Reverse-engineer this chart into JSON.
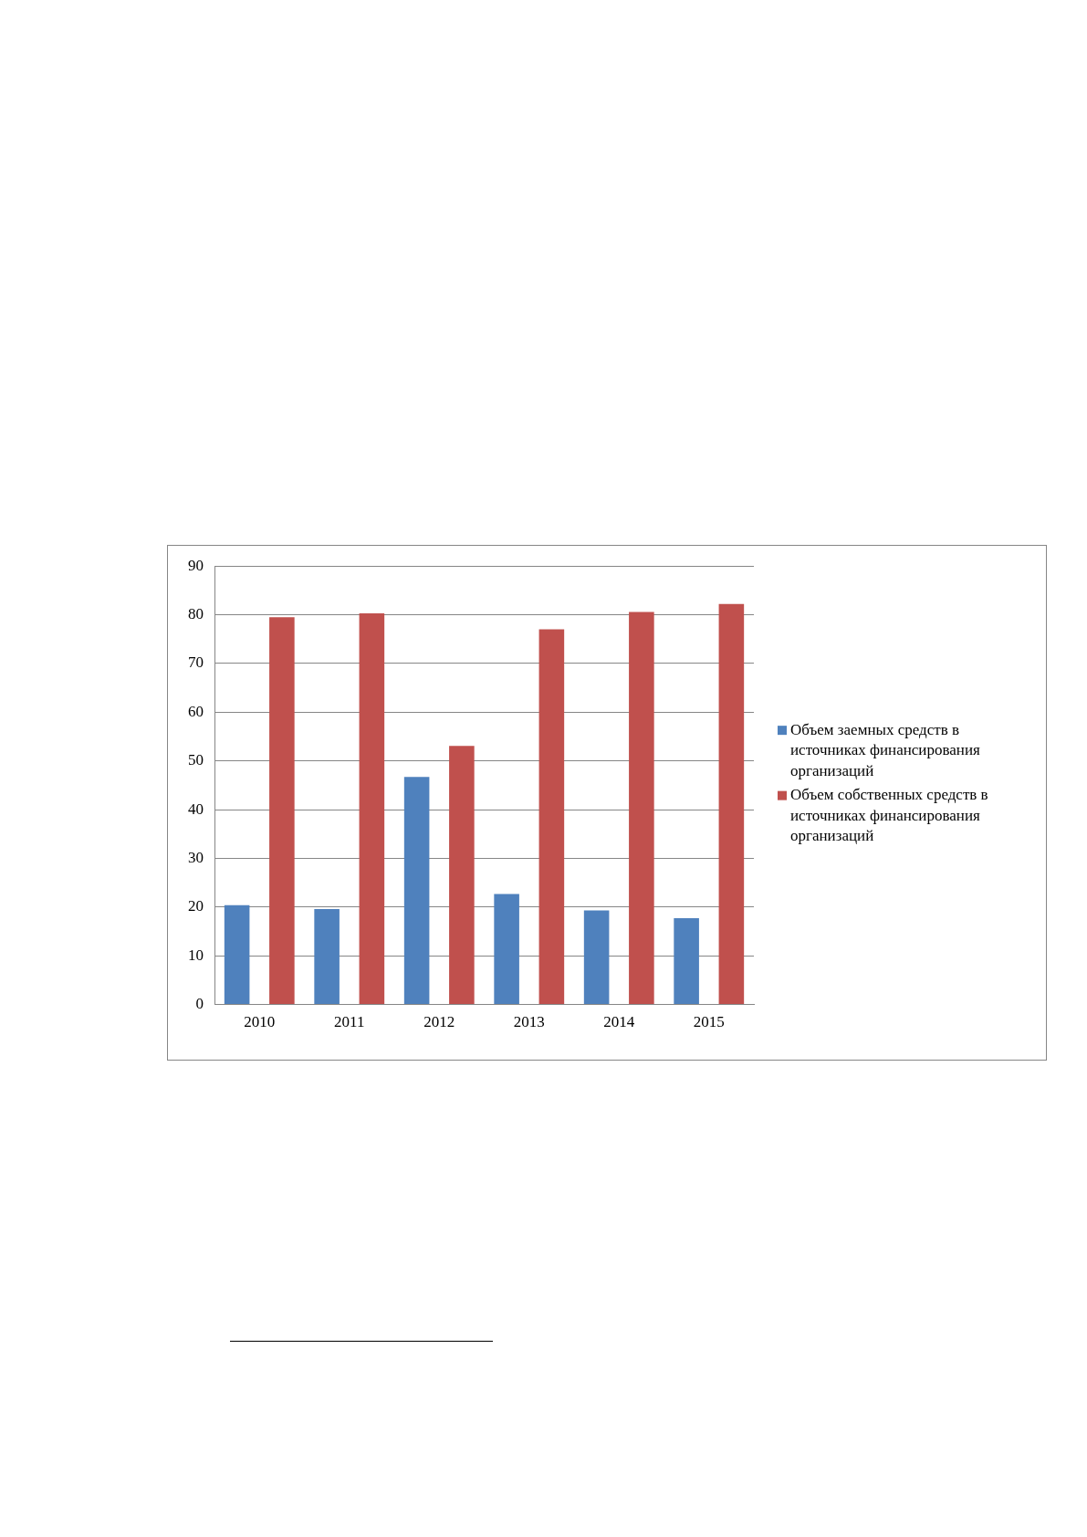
{
  "chart_data": {
    "type": "bar",
    "categories": [
      "2010",
      "2011",
      "2012",
      "2013",
      "2014",
      "2015"
    ],
    "series": [
      {
        "name": "Объем заемных средств в источниках финансирования организаций",
        "color": "#4f81bd",
        "values": [
          20.4,
          19.6,
          46.7,
          22.7,
          19.3,
          17.7
        ]
      },
      {
        "name": "Объем собственных средств в источниках финансирования организаций",
        "color": "#c0504d",
        "values": [
          79.5,
          80.3,
          53.1,
          77.0,
          80.6,
          82.2
        ]
      }
    ],
    "ylim": [
      0,
      90
    ],
    "yticks": [
      0,
      10,
      20,
      30,
      40,
      50,
      60,
      70,
      80,
      90
    ],
    "grid": "y",
    "legend": "right"
  }
}
